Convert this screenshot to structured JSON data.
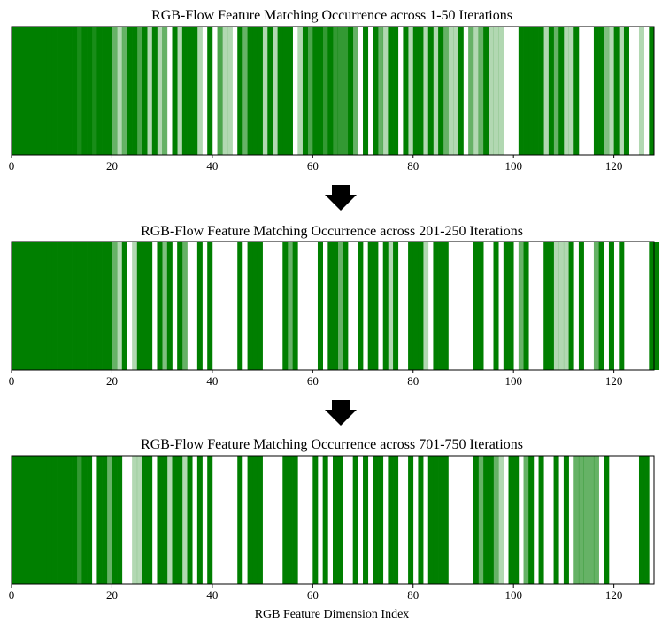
{
  "figure": {
    "arrow_icon": "down-arrow-icon",
    "bar_color": "#007F00",
    "frame_color": "#000000"
  },
  "chart_data": [
    {
      "type": "heatmap",
      "title": "RGB-Flow Feature Matching Occurrence across 1-50 Iterations",
      "xlabel": "",
      "xlim": [
        0,
        128
      ],
      "xticks": [
        0,
        20,
        40,
        60,
        80,
        100,
        120
      ],
      "value_range": [
        0,
        1
      ],
      "values": [
        1,
        1,
        1,
        1,
        1,
        1,
        1,
        1,
        1,
        1,
        1,
        1,
        1,
        0.9,
        1,
        1,
        0.9,
        1,
        1,
        1,
        0.6,
        0.3,
        0.6,
        1,
        1,
        0.7,
        1,
        0.3,
        1,
        0.3,
        0.6,
        0,
        1,
        0.3,
        1,
        1,
        1,
        0.3,
        0,
        1,
        0,
        0.7,
        0.3,
        0.3,
        0,
        1,
        0.6,
        1,
        1,
        1,
        0.3,
        1,
        0.3,
        1,
        1,
        1,
        0,
        0.3,
        1,
        0.7,
        1,
        1,
        0.8,
        1,
        0.8,
        0.8,
        0.8,
        1,
        0.6,
        0,
        1,
        0,
        1,
        0.6,
        0.3,
        1,
        1,
        0,
        1,
        0.3,
        1,
        1,
        0.3,
        1,
        0.3,
        1,
        0.6,
        0.3,
        0.3,
        1,
        0,
        0.6,
        0.3,
        0.6,
        1,
        0.3,
        0.3,
        0.3,
        0,
        0,
        0,
        1,
        1,
        1,
        1,
        1,
        0.3,
        1,
        0.6,
        1,
        0.3,
        0.3,
        1,
        0,
        0,
        0,
        1,
        1,
        0.5,
        0.3,
        1,
        0.3,
        1,
        0,
        0,
        0.3,
        0,
        1
      ]
    },
    {
      "type": "heatmap",
      "title": "RGB-Flow Feature Matching Occurrence across 201-250 Iterations",
      "xlabel": "",
      "xlim": [
        0,
        128
      ],
      "xticks": [
        0,
        20,
        40,
        60,
        80,
        100,
        120
      ],
      "value_range": [
        0,
        1
      ],
      "values": [
        1,
        1,
        1,
        1,
        1,
        1,
        1,
        1,
        1,
        1,
        1,
        1,
        1,
        1,
        1,
        1,
        1,
        1,
        1,
        1,
        0.6,
        0.3,
        1,
        0,
        0.3,
        1,
        1,
        1,
        0,
        1,
        0.5,
        1,
        0,
        1,
        0.6,
        0,
        0,
        1,
        0,
        1,
        0,
        0,
        0,
        0,
        0,
        1,
        0,
        1,
        1,
        1,
        0,
        0,
        0,
        0,
        1,
        0.6,
        1,
        0,
        0,
        0,
        0,
        1,
        0,
        1,
        1,
        0.6,
        1,
        0,
        0,
        1,
        0,
        1,
        1,
        0,
        1,
        0.3,
        1,
        0,
        0,
        1,
        1,
        1,
        0.3,
        0,
        1,
        1,
        1,
        0,
        0,
        0,
        0,
        0,
        1,
        1,
        0,
        0,
        1,
        0,
        1,
        1,
        0,
        0.6,
        1,
        0,
        0,
        0,
        1,
        1,
        0.3,
        0.3,
        0.3,
        1,
        0,
        1,
        0,
        0,
        0.6,
        1,
        0,
        1,
        0,
        1,
        0,
        0,
        0,
        0,
        0,
        1,
        1,
        0
      ]
    },
    {
      "type": "heatmap",
      "title": "RGB-Flow Feature Matching Occurrence across 701-750 Iterations",
      "xlabel": "RGB Feature Dimension Index",
      "xlim": [
        0,
        128
      ],
      "xticks": [
        0,
        20,
        40,
        60,
        80,
        100,
        120
      ],
      "value_range": [
        0,
        1
      ],
      "values": [
        1,
        1,
        1,
        1,
        1,
        1,
        1,
        1,
        1,
        1,
        1,
        1,
        1,
        0.8,
        1,
        1,
        0,
        1,
        1,
        0.6,
        1,
        1,
        0,
        0,
        0.3,
        0.3,
        1,
        1,
        0,
        1,
        1,
        0.3,
        1,
        1,
        0.3,
        1,
        0,
        1,
        0,
        1,
        0,
        0,
        0,
        0,
        0,
        1,
        0,
        1,
        1,
        1,
        0,
        0,
        0,
        0,
        1,
        1,
        1,
        0,
        0,
        0,
        1,
        0,
        1,
        0,
        1,
        1,
        0,
        0,
        1,
        0,
        1,
        0,
        1,
        1,
        0,
        1,
        1,
        0,
        0,
        1,
        0,
        1,
        0,
        1,
        1,
        1,
        1,
        0,
        0,
        0,
        0,
        0,
        1,
        0.6,
        1,
        1,
        0.6,
        0.3,
        0,
        1,
        1,
        0,
        0.6,
        1,
        0,
        1,
        0,
        0,
        1,
        0,
        1,
        0,
        0.6,
        0.6,
        0.6,
        0.6,
        0.6,
        0,
        1,
        0,
        0,
        0,
        0,
        0,
        0,
        1,
        1,
        0
      ]
    }
  ]
}
